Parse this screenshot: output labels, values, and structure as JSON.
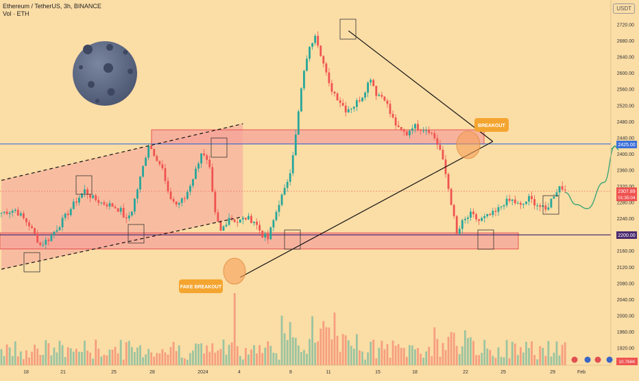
{
  "header": {
    "title": "Ethereum / TetherUS, 3h, BINANCE",
    "volume_label": "Vol · ETH",
    "currency_button": "USDT"
  },
  "annotations": {
    "breakout": "BREAKOUT",
    "fake_breakout": "FAKE BREAKOUT"
  },
  "price_badges": {
    "resistance": "2425.00",
    "current_price": "2307.89",
    "countdown": "01:35:04",
    "support": "2200.00",
    "volume": "10.766K"
  },
  "colors": {
    "background": "#fbdda6",
    "up_candle": "#26a69a",
    "down_candle": "#ef5350",
    "zone_fill": "#f6a39a",
    "zone_stroke": "#e0393e",
    "resistance_line": "#3b6fd8",
    "support_line": "#4a2a6e",
    "arrow": "#3aa676",
    "moon": "#5f6b86"
  },
  "chart_data": {
    "type": "candlestick",
    "symbol": "ETHUSDT",
    "interval": "3h",
    "exchange": "BINANCE",
    "y_axis": {
      "ticks": [
        2720,
        2680,
        2640,
        2600,
        2560,
        2520,
        2480,
        2440,
        2400,
        2360,
        2320,
        2280,
        2240,
        2200,
        2160,
        2120,
        2080,
        2040,
        2000,
        1960,
        1920
      ],
      "range": [
        1900,
        2740
      ]
    },
    "x_axis": {
      "ticks": [
        "18",
        "21",
        "25",
        "28",
        "2024",
        "4",
        "8",
        "11",
        "15",
        "18",
        "22",
        "25",
        "29",
        "Feb"
      ]
    },
    "levels": {
      "resistance": 2425,
      "support": 2200,
      "last_price": 2307.89
    },
    "zones": [
      {
        "name": "resistance zone",
        "low": 2425,
        "high": 2460
      },
      {
        "name": "support zone",
        "low": 2165,
        "high": 2205
      }
    ],
    "price_path": [
      [
        0,
        2255
      ],
      [
        5,
        2262
      ],
      [
        10,
        2225
      ],
      [
        14,
        2175
      ],
      [
        17,
        2190
      ],
      [
        22,
        2235
      ],
      [
        27,
        2285
      ],
      [
        30,
        2310
      ],
      [
        33,
        2290
      ],
      [
        36,
        2280
      ],
      [
        40,
        2272
      ],
      [
        43,
        2260
      ],
      [
        45,
        2235
      ],
      [
        47,
        2262
      ],
      [
        50,
        2340
      ],
      [
        53,
        2425
      ],
      [
        56,
        2390
      ],
      [
        58,
        2362
      ],
      [
        60,
        2300
      ],
      [
        63,
        2275
      ],
      [
        66,
        2290
      ],
      [
        70,
        2360
      ],
      [
        72,
        2405
      ],
      [
        74,
        2380
      ],
      [
        75,
        2360
      ],
      [
        76,
        2300
      ],
      [
        77,
        2250
      ],
      [
        79,
        2208
      ],
      [
        82,
        2245
      ],
      [
        85,
        2232
      ],
      [
        88,
        2242
      ],
      [
        91,
        2235
      ],
      [
        94,
        2200
      ],
      [
        96,
        2190
      ],
      [
        100,
        2280
      ],
      [
        102,
        2310
      ],
      [
        104,
        2360
      ],
      [
        106,
        2445
      ],
      [
        108,
        2560
      ],
      [
        110,
        2640
      ],
      [
        113,
        2700
      ],
      [
        115,
        2650
      ],
      [
        118,
        2570
      ],
      [
        121,
        2540
      ],
      [
        124,
        2510
      ],
      [
        127,
        2520
      ],
      [
        130,
        2545
      ],
      [
        133,
        2590
      ],
      [
        135,
        2550
      ],
      [
        138,
        2540
      ],
      [
        140,
        2500
      ],
      [
        143,
        2460
      ],
      [
        146,
        2450
      ],
      [
        148,
        2470
      ],
      [
        151,
        2465
      ],
      [
        154,
        2460
      ],
      [
        156,
        2440
      ],
      [
        158,
        2410
      ],
      [
        160,
        2350
      ],
      [
        162,
        2280
      ],
      [
        164,
        2200
      ],
      [
        166,
        2230
      ],
      [
        169,
        2250
      ],
      [
        172,
        2235
      ],
      [
        175,
        2245
      ],
      [
        178,
        2255
      ],
      [
        181,
        2280
      ],
      [
        184,
        2285
      ],
      [
        187,
        2270
      ],
      [
        190,
        2290
      ],
      [
        193,
        2275
      ],
      [
        196,
        2260
      ],
      [
        199,
        2300
      ],
      [
        201,
        2320
      ],
      [
        203,
        2310
      ]
    ],
    "forecast_path": [
      [
        203,
        2305
      ],
      [
        207,
        2275
      ],
      [
        211,
        2265
      ],
      [
        217,
        2330
      ],
      [
        221,
        2420
      ]
    ],
    "trend_lines": [
      {
        "name": "channel upper",
        "from": [
          0,
          2335
        ],
        "to": [
          87,
          2475
        ],
        "dashed": true
      },
      {
        "name": "channel lower",
        "from": [
          0,
          2115
        ],
        "to": [
          87,
          2245
        ],
        "dashed": true
      },
      {
        "name": "triangle upper",
        "from": [
          125,
          2705
        ],
        "to": [
          177,
          2431
        ]
      },
      {
        "name": "triangle lower",
        "from": [
          86,
          2095
        ],
        "to": [
          177,
          2431
        ]
      }
    ],
    "grid": false,
    "legend": "top-left"
  }
}
